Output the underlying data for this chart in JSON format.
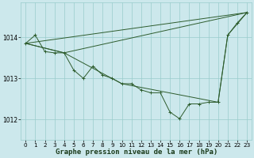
{
  "title": "Graphe pression niveau de la mer (hPa)",
  "bg_color": "#cce8ec",
  "grid_color": "#99cccc",
  "line_color": "#2d5c2d",
  "marker_color": "#2d5c2d",
  "series_main": {
    "x": [
      0,
      1,
      2,
      3,
      4,
      5,
      6,
      7,
      8,
      9,
      10,
      11,
      12,
      13,
      14,
      15,
      16,
      17,
      18,
      19,
      20,
      21,
      22,
      23
    ],
    "y": [
      1013.85,
      1014.05,
      1013.65,
      1013.62,
      1013.62,
      1013.2,
      1013.0,
      1013.3,
      1013.08,
      1013.0,
      1012.87,
      1012.87,
      1012.72,
      1012.65,
      1012.65,
      1012.18,
      1012.02,
      1012.38,
      1012.38,
      1012.42,
      1012.42,
      1014.05,
      1014.35,
      1014.6
    ]
  },
  "series_upper": {
    "x": [
      0,
      4,
      23
    ],
    "y": [
      1013.85,
      1013.62,
      1014.6
    ]
  },
  "series_straight": {
    "x": [
      0,
      23
    ],
    "y": [
      1013.85,
      1014.6
    ]
  },
  "series_lower": {
    "x": [
      0,
      4,
      10,
      20,
      21,
      23
    ],
    "y": [
      1013.85,
      1013.62,
      1012.87,
      1012.42,
      1014.05,
      1014.6
    ]
  },
  "xlim": [
    -0.5,
    23.5
  ],
  "ylim": [
    1011.5,
    1014.85
  ],
  "xticks": [
    0,
    1,
    2,
    3,
    4,
    5,
    6,
    7,
    8,
    9,
    10,
    11,
    12,
    13,
    14,
    15,
    16,
    17,
    18,
    19,
    20,
    21,
    22,
    23
  ],
  "yticks": [
    1012,
    1013,
    1014
  ],
  "xtick_fontsize": 5.2,
  "ytick_fontsize": 5.5,
  "label_fontsize": 6.5,
  "label_color": "#1a3a1a"
}
